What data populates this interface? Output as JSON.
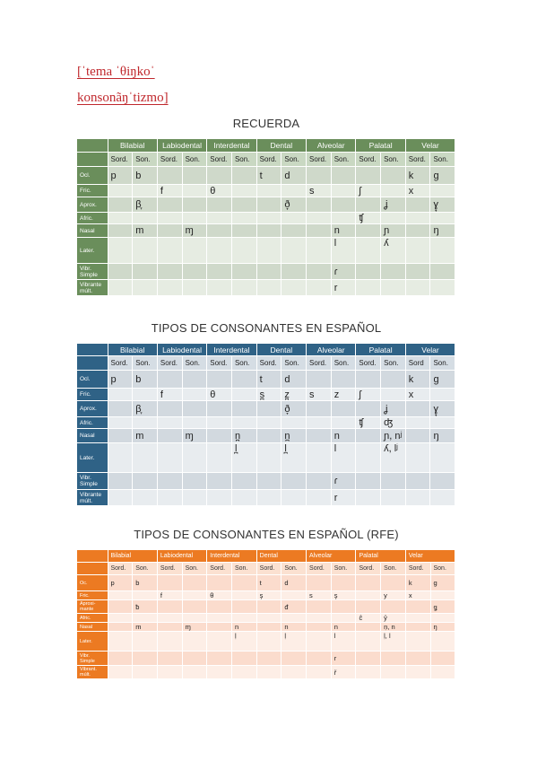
{
  "title": {
    "line1": "[ˈtema ˈθiŋkoˈ",
    "line2": "konsonãŋˈtizmo]"
  },
  "tables": [
    {
      "heading": "RECUERDA",
      "places": [
        "Bilabial",
        "Labiodental",
        "Interdental",
        "Dental",
        "Alveolar",
        "Palatal",
        "Velar"
      ],
      "voicing": [
        "Sord.",
        "Son.",
        "Sord.",
        "Son.",
        "Sord.",
        "Son.",
        "Sord.",
        "Son.",
        "Sord.",
        "Son.",
        "Sord.",
        "Son.",
        "Sord.",
        "Son."
      ],
      "rows": [
        {
          "label": "Ocl.",
          "cells": [
            "p",
            "b",
            "",
            "",
            "",
            "",
            "t",
            "d",
            "",
            "",
            "",
            "",
            "k",
            "ɡ"
          ]
        },
        {
          "label": "Fric.",
          "cells": [
            "",
            "",
            "f",
            "",
            "θ",
            "",
            "",
            "",
            "s",
            "",
            "ʃ",
            "",
            "x",
            ""
          ]
        },
        {
          "label": "Aprox.",
          "cells": [
            "",
            "β̞",
            "",
            "",
            "",
            "",
            "",
            "ð̞",
            "",
            "",
            "",
            "ʝ",
            "",
            "ɣ̞"
          ]
        },
        {
          "label": "Afric.",
          "cells": [
            "",
            "",
            "",
            "",
            "",
            "",
            "",
            "",
            "",
            "",
            "ʧ",
            "",
            "",
            ""
          ]
        },
        {
          "label": "Nasal",
          "cells": [
            "",
            "m",
            "",
            "ɱ",
            "",
            "",
            "",
            "",
            "",
            "n",
            "",
            "ɲ",
            "",
            "ŋ"
          ]
        },
        {
          "label": "Later.",
          "cells": [
            "",
            "",
            "",
            "",
            "",
            "",
            "",
            "",
            "",
            "l",
            "",
            "ʎ",
            "",
            ""
          ]
        },
        {
          "label": "Vibr. Simple",
          "cells": [
            "",
            "",
            "",
            "",
            "",
            "",
            "",
            "",
            "",
            "ɾ",
            "",
            "",
            "",
            ""
          ]
        },
        {
          "label": "Vibrante múlt.",
          "cells": [
            "",
            "",
            "",
            "",
            "",
            "",
            "",
            "",
            "",
            "r",
            "",
            "",
            "",
            ""
          ]
        }
      ]
    },
    {
      "heading": "TIPOS DE CONSONANTES EN ESPAÑOL",
      "places": [
        "Bilabial",
        "Labiodental",
        "Interdental",
        "Dental",
        "Alveolar",
        "Palatal",
        "Velar"
      ],
      "voicing": [
        "Sord.",
        "Son.",
        "Sord.",
        "Son.",
        "Sord.",
        "Son.",
        "Sord.",
        "Son.",
        "Sord.",
        "Son.",
        "Sord.",
        "Son.",
        "Sord",
        "Son."
      ],
      "rows": [
        {
          "label": "Ocl.",
          "cells": [
            "p",
            "b",
            "",
            "",
            "",
            "",
            "t",
            "d",
            "",
            "",
            "",
            "",
            "k",
            "ɡ"
          ]
        },
        {
          "label": "Fric.",
          "cells": [
            "",
            "",
            "f",
            "",
            "θ",
            "",
            "s̪",
            "z̪",
            "s",
            "z",
            "ʃ",
            "",
            "x",
            ""
          ]
        },
        {
          "label": "Aprox.",
          "cells": [
            "",
            "β̞",
            "",
            "",
            "",
            "",
            "",
            "ð̞",
            "",
            "",
            "",
            "ʝ",
            "",
            "ɣ̞"
          ]
        },
        {
          "label": "Afric.",
          "cells": [
            "",
            "",
            "",
            "",
            "",
            "",
            "",
            "",
            "",
            "",
            "ʧ",
            "ʤ",
            "",
            ""
          ]
        },
        {
          "label": "Nasal",
          "cells": [
            "",
            "m",
            "",
            "ɱ",
            "",
            "n̪",
            "",
            "n̪",
            "",
            "n",
            "",
            "ɲ, nʲ",
            "",
            "ŋ"
          ]
        },
        {
          "label": "Later.",
          "cells": [
            "",
            "",
            "",
            "",
            "",
            "l̪",
            "",
            "l̪",
            "",
            "l",
            "",
            "ʎ, lʲ",
            "",
            ""
          ]
        },
        {
          "label": "Vibr. Simple",
          "cells": [
            "",
            "",
            "",
            "",
            "",
            "",
            "",
            "",
            "",
            "ɾ",
            "",
            "",
            "",
            ""
          ]
        },
        {
          "label": "Vibrante múlt.",
          "cells": [
            "",
            "",
            "",
            "",
            "",
            "",
            "",
            "",
            "",
            "r",
            "",
            "",
            "",
            ""
          ]
        }
      ]
    },
    {
      "heading": "TIPOS DE CONSONANTES EN ESPAÑOL (RFE)",
      "places": [
        "Bilabial",
        "Labiodental",
        "Interdental",
        "Dental",
        "Alveolar",
        "Palatal",
        "Velar"
      ],
      "voicing": [
        "Sord.",
        "Son.",
        "Sord.",
        "Son.",
        "Sord.",
        "Son.",
        "Sord.",
        "Son.",
        "Sord.",
        "Son.",
        "Sord.",
        "Son.",
        "Sord.",
        "Son."
      ],
      "rows": [
        {
          "label": "Oc.",
          "cells": [
            "p",
            "b",
            "",
            "",
            "",
            "",
            "t",
            "d",
            "",
            "",
            "",
            "",
            "k",
            "ɡ"
          ]
        },
        {
          "label": "Fric.",
          "cells": [
            "",
            "",
            "f",
            "",
            "θ",
            "",
            "ş",
            "",
            "s",
            "ş",
            "",
            "y",
            "x",
            ""
          ]
        },
        {
          "label": "Aproxi-mante",
          "cells": [
            "",
            "ƀ",
            "",
            "",
            "",
            "",
            "",
            "đ",
            "",
            "",
            "",
            "",
            "",
            "ǥ"
          ]
        },
        {
          "label": "Afric.",
          "cells": [
            "",
            "",
            "",
            "",
            "",
            "",
            "",
            "",
            "",
            "",
            "ĉ",
            "ŷ",
            "",
            ""
          ]
        },
        {
          "label": "Nasal",
          "cells": [
            "",
            "m",
            "",
            "ɱ",
            "",
            "n",
            "",
            "n",
            "",
            "n",
            "",
            "ṇ, n",
            "",
            "ŋ"
          ]
        },
        {
          "label": "Later.",
          "cells": [
            "",
            "",
            "",
            "",
            "",
            "ḷ",
            "",
            "ḷ",
            "",
            "l",
            "",
            "ḷ, l",
            "",
            ""
          ]
        },
        {
          "label": "Vibr. Simple",
          "cells": [
            "",
            "",
            "",
            "",
            "",
            "",
            "",
            "",
            "",
            "r",
            "",
            "",
            "",
            ""
          ]
        },
        {
          "label": "Vibrant. múlt.",
          "cells": [
            "",
            "",
            "",
            "",
            "",
            "",
            "",
            "",
            "",
            "ř",
            "",
            "",
            "",
            ""
          ]
        }
      ]
    }
  ]
}
